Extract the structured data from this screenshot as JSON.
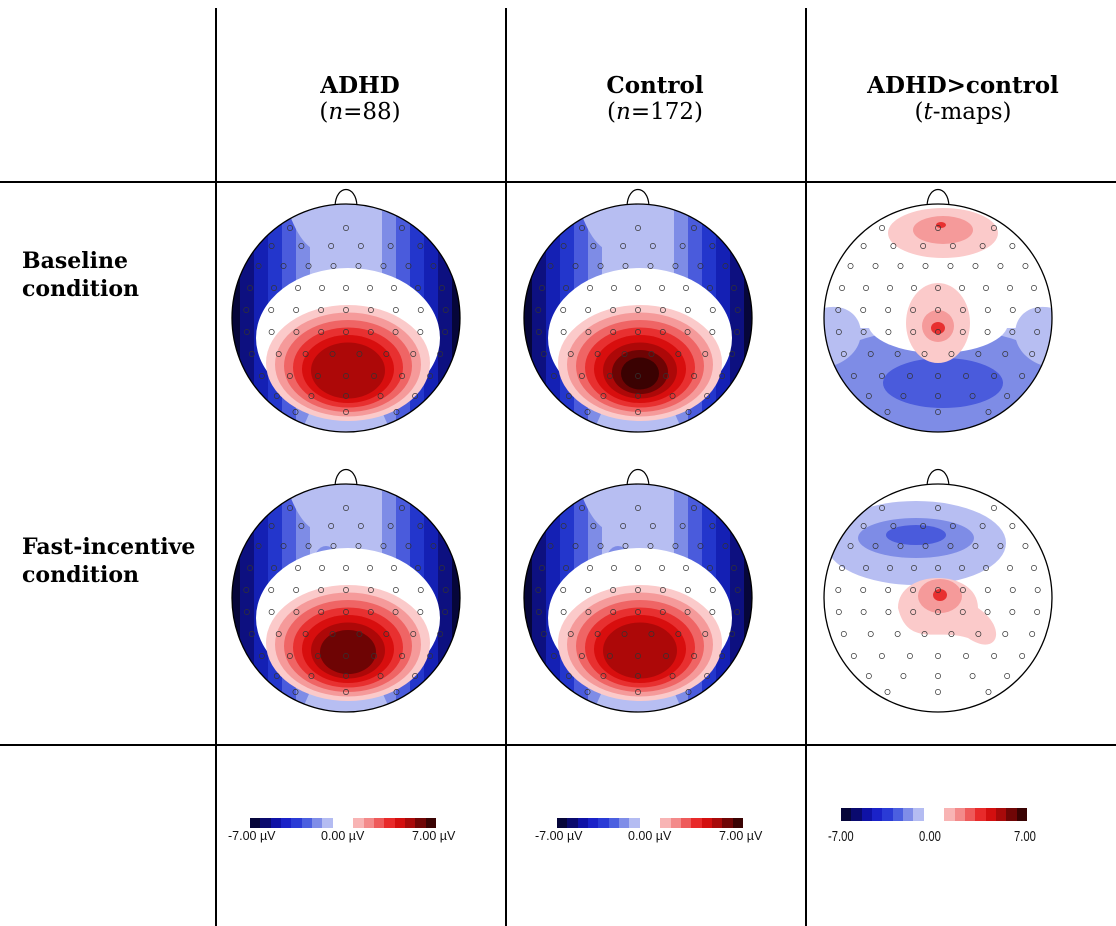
{
  "columns": [
    {
      "title": "ADHD",
      "sub_open": "(",
      "sub_italic": "n",
      "sub_rest": "=88)"
    },
    {
      "title": "Control",
      "sub_open": "(",
      "sub_italic": "n",
      "sub_rest": "=172)"
    },
    {
      "title": "ADHD>control",
      "sub_open": "(",
      "sub_italic": "t",
      "sub_rest": "-maps)"
    }
  ],
  "rows": [
    {
      "label_line1": "Baseline",
      "label_line2": "condition"
    },
    {
      "label_line1": "Fast-incentive",
      "label_line2": "condition"
    }
  ],
  "legends": [
    {
      "min": "-7.00 µV",
      "mid": "0.00 µV",
      "max": "7.00 µV"
    },
    {
      "min": "-7.00 µV",
      "mid": "0.00 µV",
      "max": "7.00 µV"
    },
    {
      "min": "-7.00",
      "mid": "0.00",
      "max": "7.00"
    }
  ],
  "colors": {
    "scale": [
      "#06063a",
      "#0a0a6e",
      "#0f12a6",
      "#1a22c8",
      "#2a3bd6",
      "#4b5fe0",
      "#7f8de8",
      "#b4bcf2",
      "#ffffff",
      "#ffffff",
      "#f8b4b4",
      "#f38a8a",
      "#ee5a5a",
      "#e82a2a",
      "#d30f0f",
      "#a80a0a",
      "#700606",
      "#3a0303"
    ]
  }
}
